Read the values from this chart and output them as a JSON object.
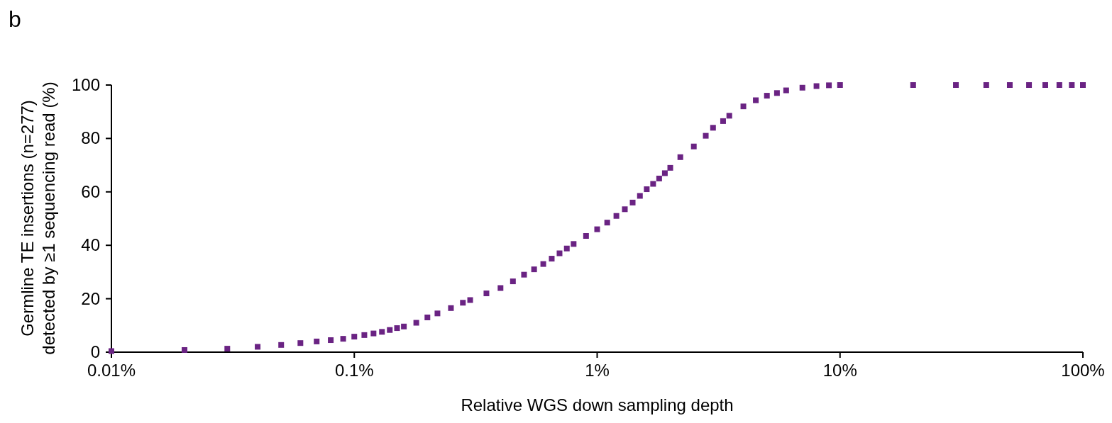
{
  "chart_data": {
    "type": "scatter",
    "xlabel": "Relative WGS down sampling depth",
    "ylabel": "Germline TE insertions (n=277)\ndetected by ≥1 sequencing read (%)",
    "annotations": [
      "b"
    ],
    "log": "x",
    "marker": "square",
    "grid": false,
    "xlim": [
      0.01,
      100
    ],
    "xticks": [
      {
        "value": 0.01,
        "label": "0.01%"
      },
      {
        "value": 0.1,
        "label": "0.1%"
      },
      {
        "value": 1,
        "label": "1%"
      },
      {
        "value": 10,
        "label": "10%"
      },
      {
        "value": 100,
        "label": "100%"
      }
    ],
    "ylim": [
      0,
      100
    ],
    "yticks": [
      0,
      20,
      40,
      60,
      80,
      100
    ],
    "series": [
      {
        "color": "#6a2383",
        "x": [
          0.01,
          0.02,
          0.03,
          0.04,
          0.05,
          0.06,
          0.07,
          0.08,
          0.09,
          0.1,
          0.11,
          0.12,
          0.13,
          0.14,
          0.15,
          0.16,
          0.18,
          0.2,
          0.22,
          0.25,
          0.28,
          0.3,
          0.35,
          0.4,
          0.45,
          0.5,
          0.55,
          0.6,
          0.65,
          0.7,
          0.75,
          0.8,
          0.9,
          1,
          1.1,
          1.2,
          1.3,
          1.4,
          1.5,
          1.6,
          1.7,
          1.8,
          1.9,
          2,
          2.2,
          2.5,
          2.8,
          3,
          3.3,
          3.5,
          4,
          4.5,
          5,
          5.5,
          6,
          7,
          8,
          9,
          10,
          20,
          30,
          40,
          50,
          60,
          70,
          80,
          90,
          100
        ],
        "values": [
          0.4,
          0.8,
          1.3,
          2,
          2.7,
          3.4,
          4,
          4.5,
          5,
          5.8,
          6.4,
          7,
          7.6,
          8.3,
          9,
          9.6,
          11,
          13,
          14.5,
          16.5,
          18.5,
          19.5,
          22,
          24,
          26.5,
          29,
          31,
          33,
          35,
          37,
          38.8,
          40.5,
          43.5,
          46,
          48.5,
          51,
          53.5,
          56,
          58.5,
          61,
          63,
          65,
          67,
          69,
          73,
          77,
          81,
          84,
          86.5,
          88.5,
          92,
          94.3,
          96,
          97,
          98,
          99,
          99.6,
          99.9,
          100,
          100,
          100,
          100,
          100,
          100,
          100,
          100,
          100,
          100
        ]
      }
    ]
  }
}
